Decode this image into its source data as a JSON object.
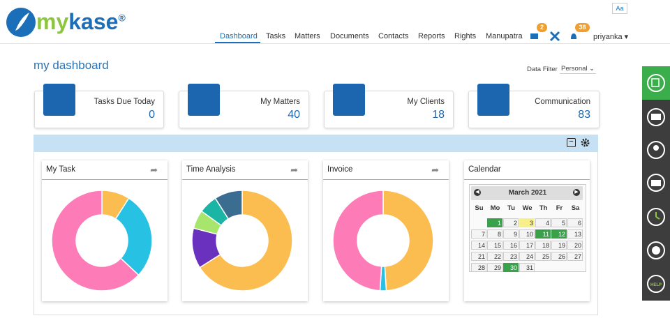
{
  "header": {
    "logo_my": "my",
    "logo_kase": "kase",
    "logo_mark": "®",
    "font_button": "Aa",
    "nav": [
      "Dashboard",
      "Tasks",
      "Matters",
      "Documents",
      "Contacts",
      "Reports",
      "Rights",
      "Manupatra"
    ],
    "mail_badge": "2",
    "alerts_badge": "38",
    "user": "priyanka"
  },
  "page": {
    "title": "my dashboard",
    "filter_label": "Data Filter",
    "filter_value": "Personal"
  },
  "cards": [
    {
      "label": "Tasks Due Today",
      "value": "0"
    },
    {
      "label": "My Matters",
      "value": "40"
    },
    {
      "label": "My Clients",
      "value": "18"
    },
    {
      "label": "Communication",
      "value": "83"
    }
  ],
  "widgets": [
    {
      "title": "My Task",
      "chart_data": {
        "type": "donut",
        "values": [
          9,
          28,
          63
        ],
        "colors": [
          "#fbbd4f",
          "#27c1e4",
          "#fd7cb8"
        ]
      }
    },
    {
      "title": "Time Analysis",
      "chart_data": {
        "type": "donut",
        "values": [
          66,
          13,
          6,
          6,
          9
        ],
        "colors": [
          "#fbbd4f",
          "#6a31bf",
          "#a8e56c",
          "#1bb5a6",
          "#3b6d91"
        ]
      }
    },
    {
      "title": "Invoice",
      "chart_data": {
        "type": "donut",
        "values": [
          49,
          2,
          49
        ],
        "colors": [
          "#fbbd4f",
          "#27c1e4",
          "#fd7cb8"
        ]
      }
    }
  ],
  "calendar": {
    "title": "Calendar",
    "month": "March 2021",
    "weekdays": [
      "Su",
      "Mo",
      "Tu",
      "We",
      "Th",
      "Fr",
      "Sa"
    ],
    "days": [
      1,
      2,
      3,
      4,
      5,
      6,
      7,
      8,
      9,
      10,
      11,
      12,
      13,
      14,
      15,
      16,
      17,
      18,
      19,
      20,
      21,
      22,
      23,
      24,
      25,
      26,
      27,
      28,
      29,
      30,
      31
    ],
    "day_fills": [
      "#3aa14b",
      null,
      "#f7f08a",
      null,
      null,
      null,
      null,
      null,
      null,
      null,
      "#3aa14b",
      "#3aa14b",
      null,
      null,
      null,
      null,
      null,
      null,
      null,
      null,
      null,
      null,
      null,
      null,
      null,
      null,
      null,
      null,
      null,
      "#3aa14b",
      null
    ]
  }
}
